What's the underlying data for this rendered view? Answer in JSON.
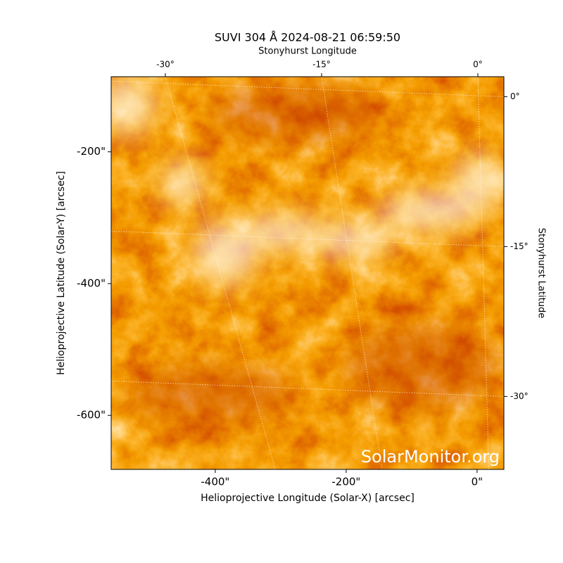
{
  "chart_data": {
    "type": "image",
    "title": "SUVI 304 Å 2024-08-21 06:59:50",
    "xlabel": "Helioprojective Longitude (Solar-X) [arcsec]",
    "ylabel": "Helioprojective Latitude (Solar-Y) [arcsec]",
    "x2label": "Stonyhurst Longitude",
    "y2label": "Stonyhurst Latitude",
    "annotation": "SolarMonitor.org",
    "xlim": [
      -559,
      41
    ],
    "xticks": [
      {
        "value": -400,
        "label": "-400\""
      },
      {
        "value": -200,
        "label": "-200\""
      },
      {
        "value": 0,
        "label": "0\""
      }
    ],
    "ylim": [
      -682,
      -86
    ],
    "yticks": [
      {
        "value": -200,
        "label": "-200\""
      },
      {
        "value": -400,
        "label": "-400\""
      },
      {
        "value": -600,
        "label": "-600\""
      }
    ],
    "x2lim": [
      -35.2,
      2.5
    ],
    "x2ticks": [
      {
        "value": -30,
        "label": "-30°"
      },
      {
        "value": -15,
        "label": "-15°"
      },
      {
        "value": 0,
        "label": "0°"
      }
    ],
    "y2lim": [
      -37.3,
      2.0
    ],
    "y2ticks": [
      {
        "value": 0,
        "label": "0°"
      },
      {
        "value": -15,
        "label": "-15°"
      },
      {
        "value": -30,
        "label": "-30°"
      }
    ],
    "grid": true
  }
}
